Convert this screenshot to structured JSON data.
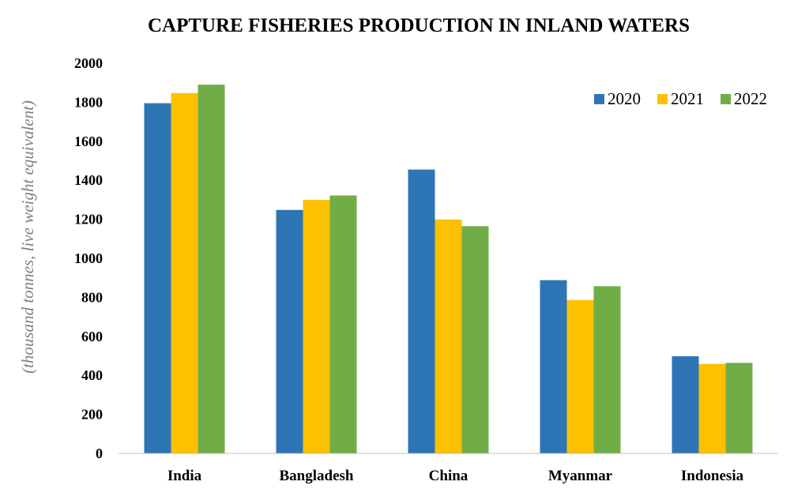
{
  "chart_data": {
    "type": "bar",
    "title": "CAPTURE FISHERIES PRODUCTION IN INLAND WATERS",
    "ylabel": "(thousand tonnes,  live weight equivalent)",
    "xlabel": "",
    "categories": [
      "India",
      "Bangladesh",
      "China",
      "Myanmar",
      "Indonesia"
    ],
    "series": [
      {
        "name": "2020",
        "color": "#2e75b6",
        "values": [
          1795,
          1248,
          1455,
          888,
          498
        ]
      },
      {
        "name": "2021",
        "color": "#ffc000",
        "values": [
          1847,
          1299,
          1199,
          786,
          459
        ]
      },
      {
        "name": "2022",
        "color": "#70ad47",
        "values": [
          1890,
          1322,
          1165,
          857,
          464
        ]
      }
    ],
    "ylim": [
      0,
      2000
    ],
    "yticks": [
      "0",
      "200",
      "400",
      "600",
      "800",
      "1000",
      "1200",
      "1400",
      "1600",
      "1800",
      "2000"
    ],
    "grid": false,
    "legend_position": "top-right"
  }
}
